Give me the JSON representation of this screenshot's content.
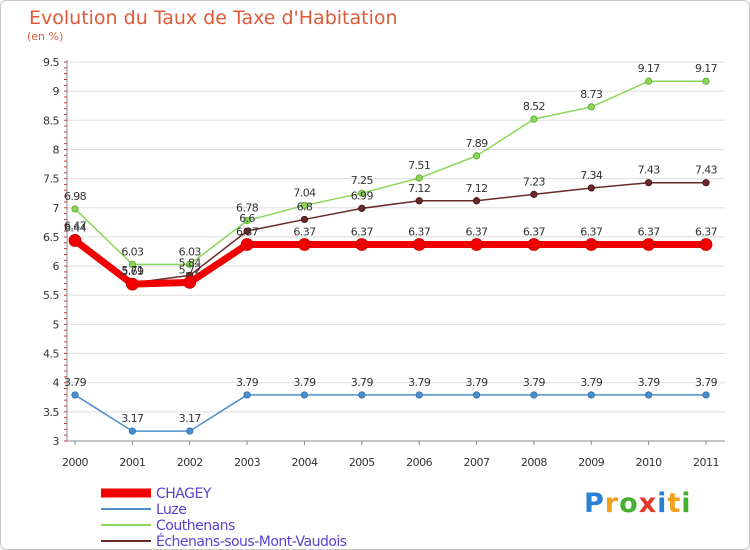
{
  "title": "Evolution du Taux de Taxe d'Habitation",
  "subtitle": "(en %)",
  "logo": {
    "letters": [
      {
        "ch": "P",
        "color": "#2b7fd6"
      },
      {
        "ch": "r",
        "color": "#f2a01e"
      },
      {
        "ch": "o",
        "color": "#44b02e"
      },
      {
        "ch": "x",
        "color": "#e23a2a"
      },
      {
        "ch": "i",
        "color": "#2b7fd6"
      },
      {
        "ch": "t",
        "color": "#f2a01e"
      },
      {
        "ch": "i",
        "color": "#44b02e"
      }
    ]
  },
  "chart_data": {
    "type": "line",
    "x": [
      "2000",
      "2001",
      "2002",
      "2003",
      "2004",
      "2005",
      "2006",
      "2007",
      "2008",
      "2009",
      "2010",
      "2011"
    ],
    "ylim": [
      3,
      9.5
    ],
    "yticks": [
      "3",
      "3.5",
      "4",
      "4.5",
      "5",
      "5.5",
      "6",
      "6.5",
      "7",
      "7.5",
      "8",
      "8.5",
      "9",
      "9.5"
    ],
    "grid": "horizontal",
    "legend_position": "bottom-left",
    "series": [
      {
        "name": "Luze",
        "color": "#4b8fcf",
        "values": [
          3.79,
          3.17,
          3.17,
          3.79,
          3.79,
          3.79,
          3.79,
          3.79,
          3.79,
          3.79,
          3.79,
          3.79
        ],
        "labels": [
          "3.79",
          "3.17",
          "3.17",
          "3.79",
          "3.79",
          "3.79",
          "3.79",
          "3.79",
          "3.79",
          "3.79",
          "3.79",
          "3.79"
        ]
      },
      {
        "name": "Couthenans",
        "color": "#8ad65a",
        "values": [
          6.98,
          6.03,
          6.03,
          6.78,
          7.04,
          7.25,
          7.51,
          7.89,
          8.52,
          8.73,
          9.17,
          9.17
        ],
        "labels": [
          "6.98",
          "6.03",
          "6.03",
          "6.78",
          "7.04",
          "7.25",
          "7.51",
          "7.89",
          "8.52",
          "8.73",
          "9.17",
          "9.17"
        ]
      },
      {
        "name": "Échenans-sous-Mont-Vaudois",
        "color": "#6b2a2a",
        "values": [
          6.47,
          5.71,
          5.84,
          6.6,
          6.8,
          6.99,
          7.12,
          7.12,
          7.23,
          7.34,
          7.43,
          7.43
        ],
        "labels": [
          "6.47",
          "5.71",
          "5.84",
          "6.6",
          "6.8",
          "6.99",
          "7.12",
          "7.12",
          "7.23",
          "7.34",
          "7.43",
          "7.43"
        ]
      },
      {
        "name": "CHAGEY",
        "color": "#f20000",
        "values": [
          6.44,
          5.69,
          5.72,
          6.37,
          6.37,
          6.37,
          6.37,
          6.37,
          6.37,
          6.37,
          6.37,
          6.37
        ],
        "labels": [
          "6.44",
          "5.69",
          "5.72",
          "6.37",
          "6.37",
          "6.37",
          "6.37",
          "6.37",
          "6.37",
          "6.37",
          "6.37",
          "6.37"
        ]
      }
    ],
    "legend_order": [
      "CHAGEY",
      "Luze",
      "Couthenans",
      "Échenans-sous-Mont-Vaudois"
    ]
  }
}
